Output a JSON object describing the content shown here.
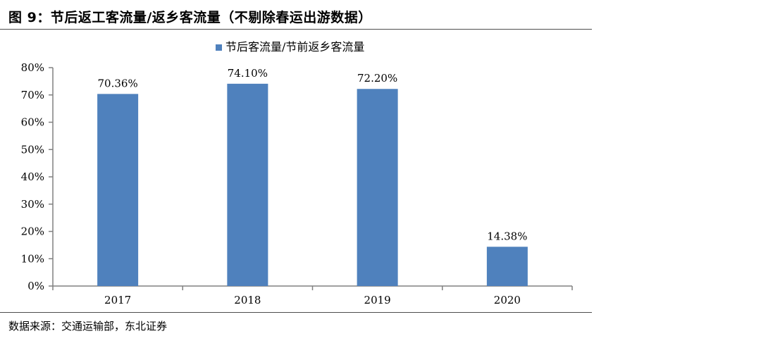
{
  "figure": {
    "title": "图 9：节后返工客流量/返乡客流量（不剔除春运出游数据）",
    "source": "数据来源：交通运输部，东北证券"
  },
  "colors": {
    "bar": "#4f81bd",
    "axis": "#808080",
    "rule": "#4d4d4d"
  },
  "chart_data": {
    "type": "bar",
    "title": "",
    "xlabel": "",
    "ylabel": "",
    "categories": [
      "2017",
      "2018",
      "2019",
      "2020"
    ],
    "series": [
      {
        "name": "节后客流量/节前返乡客流量",
        "values": [
          70.36,
          74.1,
          72.2,
          14.38
        ]
      }
    ],
    "data_labels": [
      "70.36%",
      "74.10%",
      "72.20%",
      "14.38%"
    ],
    "ylim": [
      0,
      80
    ],
    "yticks": [
      0,
      10,
      20,
      30,
      40,
      50,
      60,
      70,
      80
    ],
    "ytick_labels": [
      "0%",
      "10%",
      "20%",
      "30%",
      "40%",
      "50%",
      "60%",
      "70%",
      "80%"
    ],
    "grid": false,
    "legend_position": "top-center"
  }
}
